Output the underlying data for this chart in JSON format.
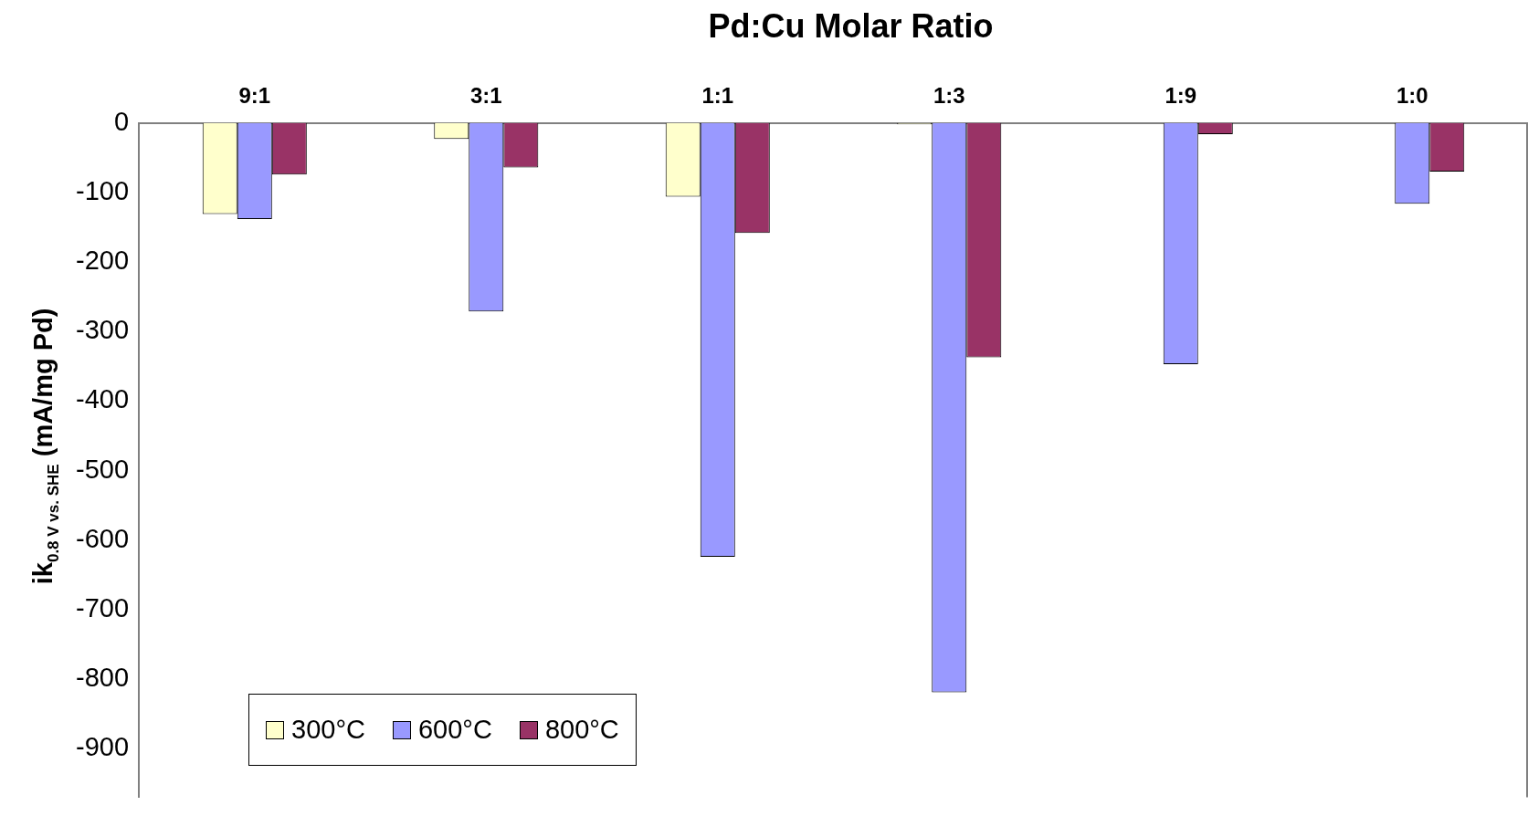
{
  "chart_data": {
    "type": "bar",
    "title": "Pd:Cu Molar Ratio",
    "ylabel": "ik$_{0.8 V vs. SHE}$ (mA/mg Pd)",
    "categories": [
      "9:1",
      "3:1",
      "1:1",
      "1:3",
      "1:9",
      "1:0"
    ],
    "series": [
      {
        "name": "300°C",
        "color": "#ffffcc",
        "values": [
          -131,
          -23,
          -106,
          -2,
          null,
          null
        ]
      },
      {
        "name": "600°C",
        "color": "#9999ff",
        "values": [
          -138,
          -271,
          -624,
          -819,
          -347,
          -116
        ]
      },
      {
        "name": "800°C",
        "color": "#993366",
        "values": [
          -74,
          -64,
          -158,
          -337,
          -16,
          -70
        ]
      }
    ],
    "ylim": [
      -970,
      0
    ],
    "yticks": [
      0,
      -100,
      -200,
      -300,
      -400,
      -500,
      -600,
      -700,
      -800,
      -900
    ],
    "grid": false,
    "legend": "bottom left"
  }
}
